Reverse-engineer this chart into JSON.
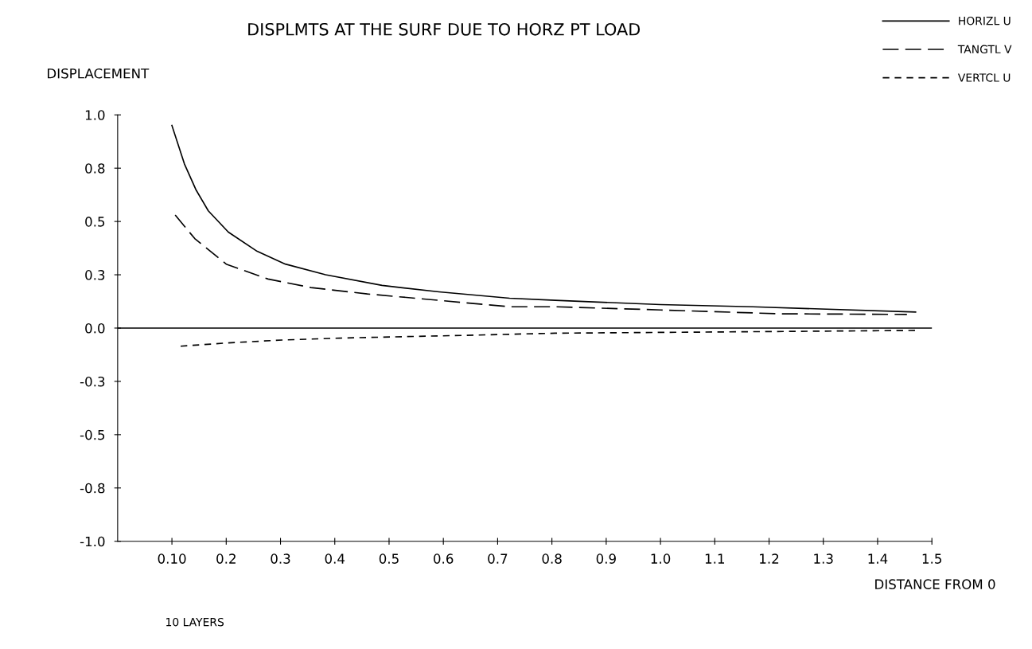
{
  "chart_data": {
    "type": "line",
    "title": "DISPLMTS AT THE SURF DUE TO HORZ PT LOAD",
    "ylabel": "DISPLACEMENT",
    "xlabel": "DISTANCE FROM 0",
    "annotations": [
      "10 LAYERS"
    ],
    "series": [
      {
        "name": "HORIZL U",
        "color": "#000000",
        "line_style": "solid",
        "x": [
          0.1,
          0.123,
          0.144,
          0.167,
          0.204,
          0.257,
          0.309,
          0.383,
          0.487,
          0.592,
          0.722,
          0.806,
          1.0,
          1.17,
          1.47
        ],
        "values": [
          0.95,
          0.77,
          0.65,
          0.55,
          0.45,
          0.36,
          0.3,
          0.25,
          0.2,
          0.17,
          0.14,
          0.13,
          0.11,
          0.1,
          0.075
        ]
      },
      {
        "name": "TANGTL V",
        "color": "#000000",
        "line_style": "dashed",
        "x": [
          0.106,
          0.142,
          0.2,
          0.277,
          0.356,
          0.46,
          0.592,
          0.722,
          0.806,
          1.0,
          1.22,
          1.454
        ],
        "values": [
          0.53,
          0.42,
          0.3,
          0.23,
          0.19,
          0.16,
          0.13,
          0.1,
          0.1,
          0.085,
          0.067,
          0.064
        ]
      },
      {
        "name": "VERTCL U",
        "color": "#000000",
        "line_style": "dotted",
        "x": [
          0.116,
          0.2,
          0.303,
          0.409,
          0.513,
          0.643,
          0.806,
          1.07,
          1.47
        ],
        "values": [
          -0.085,
          -0.07,
          -0.056,
          -0.047,
          -0.041,
          -0.034,
          -0.024,
          -0.019,
          -0.011
        ]
      }
    ],
    "xlim": [
      0,
      1.5
    ],
    "ylim": [
      -1.0,
      1.0
    ],
    "xticks": [
      {
        "value": 0.1,
        "label": "0.10"
      },
      {
        "value": 0.2,
        "label": "0.2"
      },
      {
        "value": 0.3,
        "label": "0.3"
      },
      {
        "value": 0.4,
        "label": "0.4"
      },
      {
        "value": 0.5,
        "label": "0.5"
      },
      {
        "value": 0.6,
        "label": "0.6"
      },
      {
        "value": 0.7,
        "label": "0.7"
      },
      {
        "value": 0.8,
        "label": "0.8"
      },
      {
        "value": 0.9,
        "label": "0.9"
      },
      {
        "value": 1.0,
        "label": "1.0"
      },
      {
        "value": 1.1,
        "label": "1.1"
      },
      {
        "value": 1.2,
        "label": "1.2"
      },
      {
        "value": 1.3,
        "label": "1.3"
      },
      {
        "value": 1.4,
        "label": "1.4"
      },
      {
        "value": 1.5,
        "label": "1.5"
      }
    ],
    "yticks": [
      {
        "value": -1.0,
        "label": "-1.0"
      },
      {
        "value": -0.75,
        "label": "-0.8"
      },
      {
        "value": -0.5,
        "label": "-0.5"
      },
      {
        "value": -0.25,
        "label": "-0.3"
      },
      {
        "value": 0.0,
        "label": "0.0"
      },
      {
        "value": 0.25,
        "label": "0.3"
      },
      {
        "value": 0.5,
        "label": "0.5"
      },
      {
        "value": 0.75,
        "label": "0.8"
      },
      {
        "value": 1.0,
        "label": "1.0"
      }
    ],
    "ref_lines": [
      {
        "axis": "y",
        "value": 0.0,
        "color": "#000000",
        "line_style": "solid"
      }
    ],
    "grid": false,
    "legend": "top right",
    "marker": "none"
  }
}
